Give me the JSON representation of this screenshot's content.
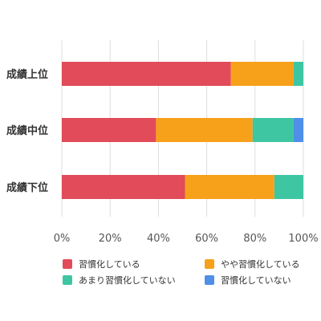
{
  "chart_data": {
    "type": "bar",
    "orientation": "horizontal",
    "stacked": true,
    "categories": [
      "成績上位",
      "成績中位",
      "成績下位"
    ],
    "series": [
      {
        "name": "習慣化している",
        "color": "#e14b5a",
        "values": [
          70,
          39,
          51
        ]
      },
      {
        "name": "やや習慣化している",
        "color": "#f7a11a",
        "values": [
          26,
          40,
          37
        ]
      },
      {
        "name": "あまり習慣化していない",
        "color": "#3ec6a2",
        "values": [
          4,
          17,
          12
        ]
      },
      {
        "name": "習慣化していない",
        "color": "#4f8fe8",
        "values": [
          0,
          4,
          0
        ]
      }
    ],
    "x_ticks": [
      "0%",
      "20%",
      "40%",
      "60%",
      "80%",
      "100%"
    ],
    "xlim": [
      0,
      100
    ],
    "grid": true,
    "legend_position": "bottom"
  }
}
